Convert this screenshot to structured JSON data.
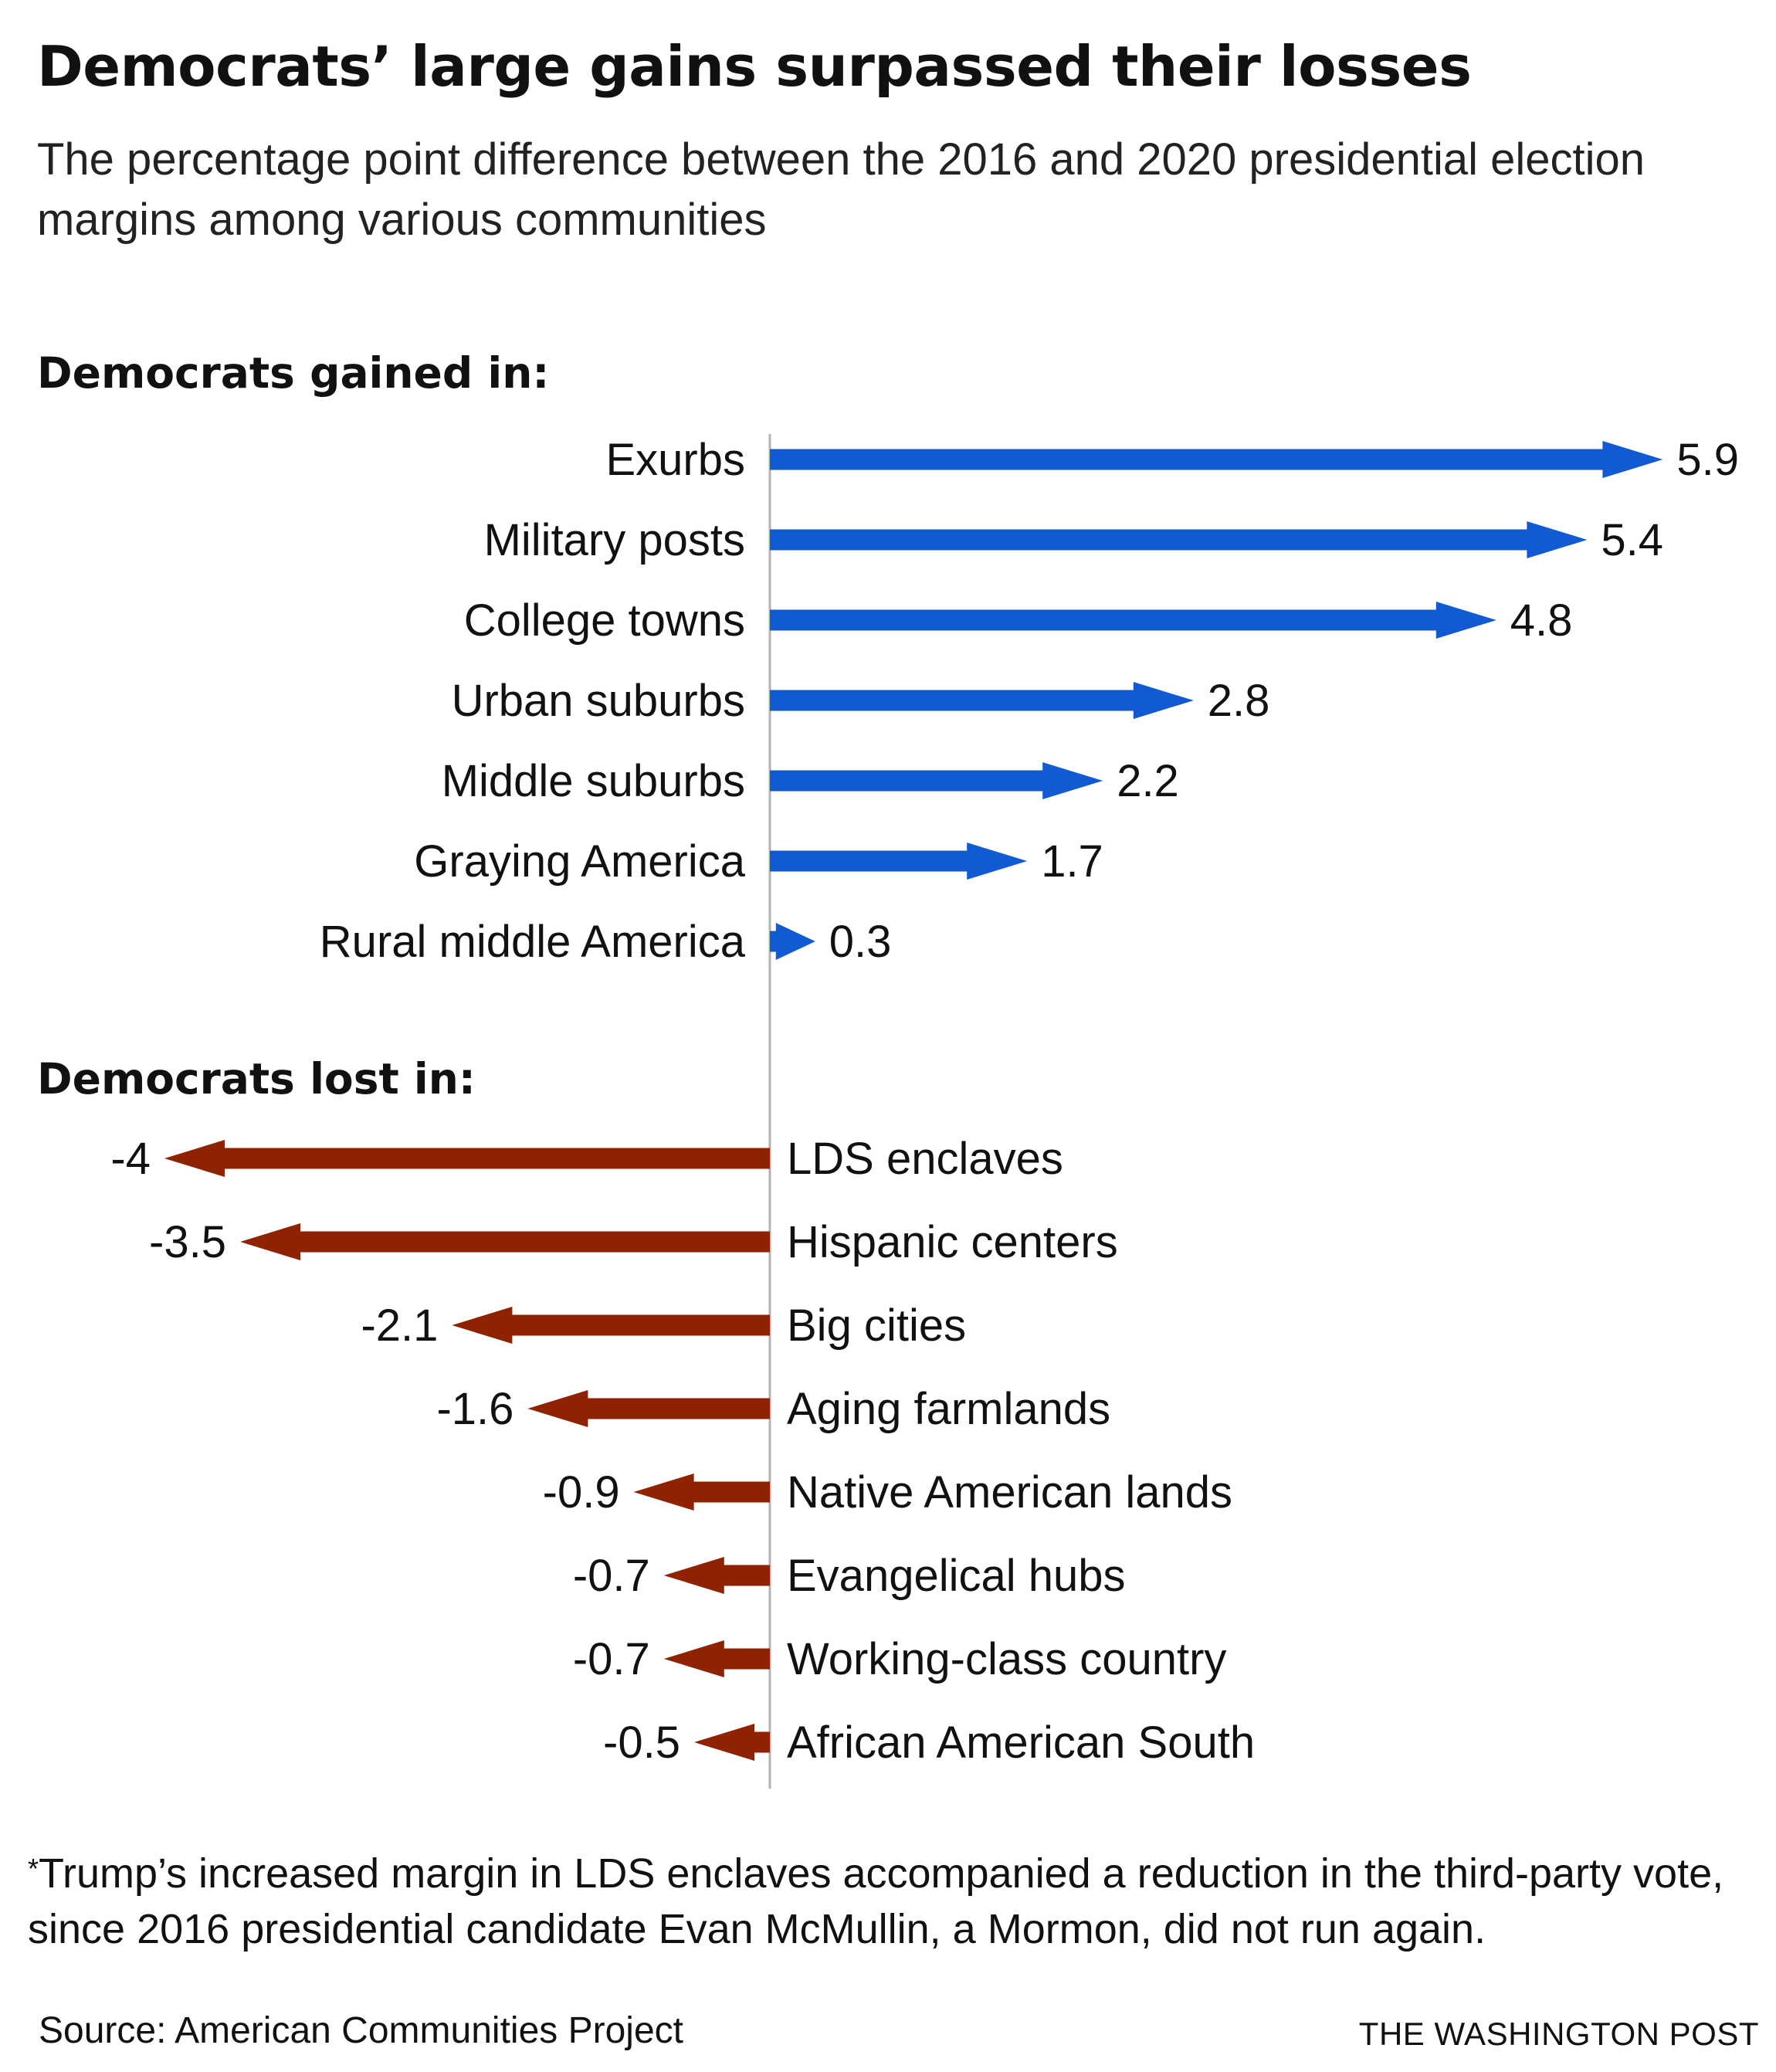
{
  "title": "Democrats’ large gains surpassed their losses",
  "subtitle": "The percentage point difference between the 2016 and 2020 presidential election margins among various communities",
  "sections": {
    "gained": "Democrats gained in:",
    "lost": "Democrats lost in:"
  },
  "footnote": {
    "marker": "*",
    "text": "Trump’s increased margin in LDS enclaves accompanied a reduction in the third-party vote, since 2016 presidential candidate Evan McMullin, a Mormon, did not run again."
  },
  "source": "Source: American Communities Project",
  "credit": "THE WASHINGTON POST",
  "colors": {
    "gain": "#1259d4",
    "loss": "#8f2200",
    "axis": "#b3b3b3"
  },
  "chart_data": {
    "type": "bar",
    "subtype": "diverging-arrows",
    "gained": [
      {
        "label": "Exurbs",
        "value": 5.9,
        "value_label": "5.9"
      },
      {
        "label": "Military posts",
        "value": 5.4,
        "value_label": "5.4"
      },
      {
        "label": "College towns",
        "value": 4.8,
        "value_label": "4.8"
      },
      {
        "label": "Urban suburbs",
        "value": 2.8,
        "value_label": "2.8"
      },
      {
        "label": "Middle suburbs",
        "value": 2.2,
        "value_label": "2.2"
      },
      {
        "label": "Graying America",
        "value": 1.7,
        "value_label": "1.7"
      },
      {
        "label": "Rural middle America",
        "value": 0.3,
        "value_label": "0.3"
      }
    ],
    "lost": [
      {
        "label": "LDS enclaves",
        "value": -4,
        "value_label": "-4"
      },
      {
        "label": "Hispanic centers",
        "value": -3.5,
        "value_label": "-3.5"
      },
      {
        "label": "Big cities",
        "value": -2.1,
        "value_label": "-2.1"
      },
      {
        "label": "Aging farmlands",
        "value": -1.6,
        "value_label": "-1.6"
      },
      {
        "label": "Native American lands",
        "value": -0.9,
        "value_label": "-0.9"
      },
      {
        "label": "Evangelical hubs",
        "value": -0.7,
        "value_label": "-0.7"
      },
      {
        "label": "Working-class country",
        "value": -0.7,
        "value_label": "-0.7"
      },
      {
        "label": "African American South",
        "value": -0.5,
        "value_label": "-0.5"
      }
    ],
    "grid": false,
    "legend": "none"
  }
}
